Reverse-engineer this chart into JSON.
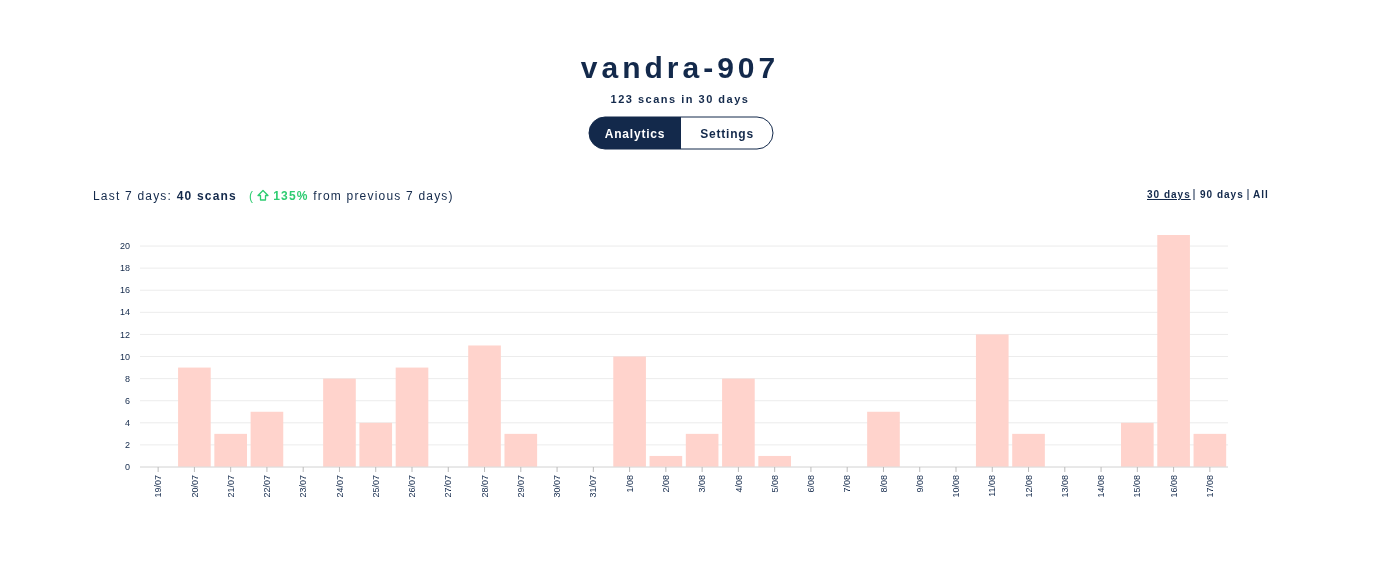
{
  "chart_data": {
    "type": "bar",
    "title": "vandra-907",
    "subtitle": "123 scans in 30 days",
    "annotations": [
      "Analytics",
      "Settings",
      "Last 7 days: ",
      "40 scans",
      "(",
      "135%",
      " from previous 7 days)",
      "30 days",
      "90 days",
      "All"
    ],
    "categories": [
      "19/07",
      "20/07",
      "21/07",
      "22/07",
      "23/07",
      "24/07",
      "25/07",
      "26/07",
      "27/07",
      "28/07",
      "29/07",
      "30/07",
      "31/07",
      "1/08",
      "2/08",
      "3/08",
      "4/08",
      "5/08",
      "6/08",
      "7/08",
      "8/08",
      "9/08",
      "10/08",
      "11/08",
      "12/08",
      "13/08",
      "14/08",
      "15/08",
      "16/08",
      "17/08"
    ],
    "values": [
      0,
      9,
      3,
      5,
      0,
      8,
      4,
      9,
      0,
      11,
      3,
      0,
      0,
      10,
      1,
      3,
      8,
      1,
      0,
      0,
      5,
      0,
      0,
      12,
      3,
      0,
      0,
      4,
      21,
      3
    ],
    "color": "#ffd3cc",
    "ylim": [
      0,
      21
    ],
    "yticks": [
      0,
      2,
      4,
      6,
      8,
      10,
      12,
      14,
      16,
      18,
      20
    ],
    "grid": "y"
  }
}
